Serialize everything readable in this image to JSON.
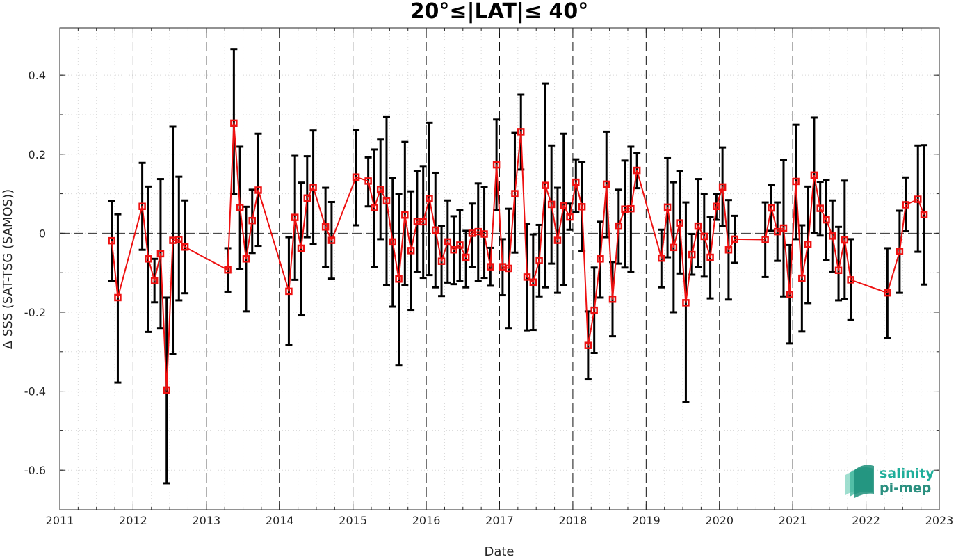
{
  "chart_data": {
    "type": "line",
    "title": "20°≤|LAT|≤ 40°",
    "xlabel": "Date",
    "ylabel": "Δ SSS (SAT-TSG (SAMOS))",
    "x_ticks": [
      "2011",
      "2012",
      "2013",
      "2014",
      "2015",
      "2016",
      "2017",
      "2018",
      "2019",
      "2020",
      "2021",
      "2022",
      "2023"
    ],
    "y_ticks": [
      "0.4",
      "0.2",
      "0",
      "-0.2",
      "-0.4",
      "-0.6"
    ],
    "xlim": [
      "2011-01-01",
      "2023-01-01"
    ],
    "ylim": [
      -0.7,
      0.52
    ],
    "grid": "dotted minor grid; dashed vertical lines at each year; dashed horizontal line at 0",
    "legend": "none",
    "series_color": "#ee1111",
    "errorbar_color": "#000000",
    "marker": "square",
    "series": [
      {
        "x": [
          "2011-09",
          "2011-10",
          "2012-02",
          "2012-03",
          "2012-04",
          "2012-05",
          "2012-06",
          "2012-07",
          "2012-08",
          "2012-09",
          "2013-04",
          "2013-05",
          "2013-06",
          "2013-07",
          "2013-08",
          "2013-09",
          "2014-02",
          "2014-03",
          "2014-04",
          "2014-05",
          "2014-06",
          "2014-08",
          "2014-09",
          "2015-01",
          "2015-03",
          "2015-04",
          "2015-05",
          "2015-06",
          "2015-07",
          "2015-08",
          "2015-09",
          "2015-10",
          "2015-11",
          "2015-12",
          "2016-01",
          "2016-02",
          "2016-03",
          "2016-04",
          "2016-05",
          "2016-06",
          "2016-07",
          "2016-08",
          "2016-09",
          "2016-10",
          "2016-11",
          "2016-12",
          "2017-01",
          "2017-02",
          "2017-03",
          "2017-04",
          "2017-05",
          "2017-06",
          "2017-07",
          "2017-08",
          "2017-09",
          "2017-10",
          "2017-11",
          "2017-12",
          "2018-01",
          "2018-02",
          "2018-03",
          "2018-04",
          "2018-05",
          "2018-06",
          "2018-07",
          "2018-08",
          "2018-09",
          "2018-10",
          "2018-11",
          "2019-03",
          "2019-04",
          "2019-05",
          "2019-06",
          "2019-07",
          "2019-08",
          "2019-09",
          "2019-10",
          "2019-11",
          "2019-12",
          "2020-01",
          "2020-02",
          "2020-03",
          "2020-08",
          "2020-09",
          "2020-10",
          "2020-11",
          "2020-12",
          "2021-01",
          "2021-02",
          "2021-03",
          "2021-04",
          "2021-05",
          "2021-06",
          "2021-07",
          "2021-08",
          "2021-09",
          "2021-10",
          "2022-04",
          "2022-06",
          "2022-07",
          "2022-09",
          "2022-10"
        ],
        "y": [
          -0.019,
          -0.163,
          0.068,
          -0.065,
          -0.12,
          -0.052,
          -0.397,
          -0.018,
          -0.016,
          -0.035,
          -0.093,
          0.279,
          0.065,
          -0.065,
          0.032,
          0.109,
          -0.147,
          0.04,
          -0.038,
          0.089,
          0.116,
          0.016,
          -0.018,
          0.142,
          0.132,
          0.065,
          0.111,
          0.082,
          -0.022,
          -0.116,
          0.046,
          -0.044,
          0.03,
          0.029,
          0.088,
          0.008,
          -0.071,
          -0.022,
          -0.042,
          -0.03,
          -0.061,
          0.0,
          0.004,
          -0.002,
          -0.085,
          0.173,
          -0.085,
          -0.089,
          0.1,
          0.257,
          -0.111,
          -0.124,
          -0.069,
          0.121,
          0.073,
          -0.018,
          0.07,
          0.041,
          0.129,
          0.067,
          -0.284,
          -0.195,
          -0.065,
          0.124,
          -0.167,
          0.018,
          0.061,
          0.062,
          0.159,
          -0.063,
          0.066,
          -0.036,
          0.026,
          -0.176,
          -0.054,
          0.018,
          -0.008,
          -0.061,
          0.068,
          0.117,
          -0.042,
          -0.015,
          -0.016,
          0.064,
          0.004,
          0.013,
          -0.155,
          0.131,
          -0.114,
          -0.028,
          0.147,
          0.063,
          0.034,
          -0.007,
          -0.094,
          -0.017,
          -0.118,
          -0.151,
          -0.046,
          0.072,
          0.086,
          0.047
        ],
        "err_low": [
          -0.12,
          -0.378,
          -0.042,
          -0.25,
          -0.175,
          -0.24,
          -0.633,
          -0.306,
          -0.17,
          -0.152,
          -0.148,
          0.1,
          -0.09,
          -0.198,
          -0.05,
          -0.032,
          -0.283,
          -0.118,
          -0.208,
          -0.01,
          -0.027,
          -0.085,
          -0.115,
          0.02,
          0.068,
          -0.086,
          -0.015,
          -0.132,
          -0.186,
          -0.335,
          -0.132,
          -0.194,
          -0.097,
          -0.113,
          -0.106,
          -0.137,
          -0.159,
          -0.125,
          -0.129,
          -0.12,
          -0.137,
          -0.085,
          -0.12,
          -0.113,
          -0.133,
          0.058,
          -0.157,
          -0.24,
          -0.049,
          0.161,
          -0.246,
          -0.245,
          -0.16,
          -0.137,
          -0.077,
          -0.151,
          -0.131,
          0.009,
          0.053,
          -0.046,
          -0.37,
          -0.303,
          -0.163,
          -0.01,
          -0.261,
          -0.077,
          -0.087,
          -0.097,
          0.114,
          -0.137,
          -0.061,
          -0.2,
          -0.102,
          -0.428,
          -0.105,
          -0.085,
          -0.11,
          -0.165,
          0.034,
          0.018,
          -0.168,
          -0.075,
          -0.111,
          0.006,
          -0.07,
          -0.16,
          -0.279,
          -0.015,
          -0.249,
          -0.177,
          0.0,
          -0.006,
          -0.068,
          -0.097,
          -0.17,
          -0.166,
          -0.22,
          -0.265,
          -0.151,
          0.005,
          -0.047,
          -0.13
        ],
        "err_high": [
          0.082,
          0.048,
          0.178,
          0.118,
          -0.065,
          0.137,
          -0.163,
          0.27,
          0.143,
          0.083,
          -0.038,
          0.466,
          0.219,
          0.067,
          0.11,
          0.252,
          -0.01,
          0.196,
          0.128,
          0.195,
          0.26,
          0.115,
          0.079,
          0.262,
          0.192,
          0.212,
          0.237,
          0.294,
          0.14,
          0.1,
          0.231,
          0.106,
          0.158,
          0.17,
          0.28,
          0.153,
          0.019,
          0.083,
          0.043,
          0.059,
          0.006,
          0.075,
          0.126,
          0.117,
          -0.037,
          0.288,
          -0.015,
          0.062,
          0.254,
          0.351,
          0.024,
          -0.003,
          0.021,
          0.379,
          0.222,
          0.115,
          0.252,
          0.075,
          0.187,
          0.181,
          -0.198,
          -0.087,
          0.029,
          0.257,
          -0.073,
          0.11,
          0.184,
          0.219,
          0.204,
          0.009,
          0.19,
          0.129,
          0.157,
          0.078,
          -0.002,
          0.137,
          0.1,
          0.042,
          0.1,
          0.217,
          0.084,
          0.044,
          0.078,
          0.123,
          0.078,
          0.186,
          -0.03,
          0.275,
          0.02,
          0.118,
          0.293,
          0.13,
          0.135,
          0.083,
          0.016,
          0.133,
          -0.015,
          -0.038,
          0.057,
          0.141,
          0.222,
          0.223
        ]
      }
    ]
  },
  "logo": {
    "line1": "salinity",
    "line2": "pi-mep",
    "color_line1": "#1fae9a",
    "color_line2": "#2a8f7f"
  }
}
